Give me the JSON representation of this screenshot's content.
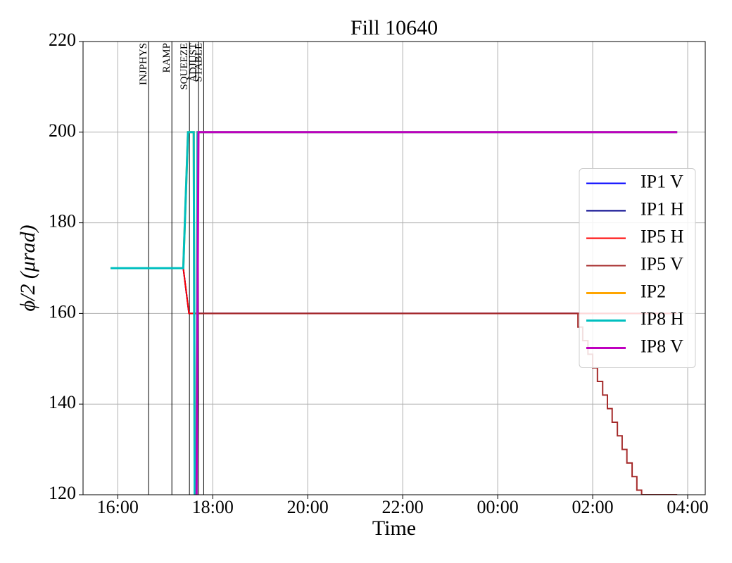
{
  "chart_data": {
    "type": "line",
    "title": "Fill 10640",
    "x_label": "Time",
    "y_label": "ϕ/2 (μrad)",
    "xlim": [
      15.27,
      28.37
    ],
    "ylim": [
      120,
      220
    ],
    "xticks": [
      {
        "value": 16,
        "label": "16:00"
      },
      {
        "value": 18,
        "label": "18:00"
      },
      {
        "value": 20,
        "label": "20:00"
      },
      {
        "value": 22,
        "label": "22:00"
      },
      {
        "value": 24,
        "label": "00:00"
      },
      {
        "value": 26,
        "label": "02:00"
      },
      {
        "value": 28,
        "label": "04:00"
      }
    ],
    "yticks": [
      120,
      140,
      160,
      180,
      200,
      220
    ],
    "grid": true,
    "legend_loc": "center right",
    "vlines": [
      {
        "x": 16.65,
        "label": "INJPHYS"
      },
      {
        "x": 17.14,
        "label": "RAMP"
      },
      {
        "x": 17.51,
        "label": "SQUEEZE"
      },
      {
        "x": 17.7,
        "label": "ADJUST"
      },
      {
        "x": 17.81,
        "label": "STABLE"
      }
    ],
    "series": [
      {
        "name": "IP1 V",
        "color": "#0000ff",
        "linewidth": 2,
        "x": [
          15.85,
          17.38,
          17.5,
          27.78
        ],
        "values": [
          170,
          170,
          160,
          160
        ]
      },
      {
        "name": "IP1 H",
        "color": "#00008b",
        "linewidth": 2,
        "x": [
          15.85,
          17.38,
          17.5,
          27.78
        ],
        "values": [
          170,
          170,
          160,
          160
        ]
      },
      {
        "name": "IP5 H",
        "color": "#ff0000",
        "linewidth": 2,
        "x": [
          15.85,
          17.38,
          17.5,
          27.78
        ],
        "values": [
          170,
          170,
          160,
          160
        ]
      },
      {
        "name": "IP5 V",
        "color": "#a52a2a",
        "linewidth": 2,
        "x": [
          17.64,
          17.68,
          25.69,
          25.69,
          25.79,
          25.79,
          25.9,
          25.9,
          26.0,
          26.0,
          26.1,
          26.1,
          26.21,
          26.21,
          26.31,
          26.31,
          26.41,
          26.41,
          26.52,
          26.52,
          26.62,
          26.62,
          26.72,
          26.72,
          26.83,
          26.83,
          26.93,
          26.93,
          27.03,
          27.03,
          27.78
        ],
        "values": [
          120,
          160,
          160,
          157,
          157,
          154,
          154,
          151,
          151,
          148,
          148,
          145,
          145,
          142,
          142,
          139,
          139,
          136,
          136,
          133,
          133,
          130,
          130,
          127,
          127,
          124,
          124,
          121,
          121,
          120,
          120
        ]
      },
      {
        "name": "IP2",
        "color": "#ffa500",
        "linewidth": 3,
        "x": [
          15.85,
          17.38,
          17.48,
          17.6,
          17.62,
          17.66,
          17.68,
          27.78
        ],
        "values": [
          170,
          170,
          200,
          200,
          120,
          120,
          200,
          200
        ]
      },
      {
        "name": "IP8 H",
        "color": "#00bfbf",
        "linewidth": 3,
        "x": [
          15.85,
          17.38,
          17.48,
          17.6,
          17.62,
          17.66,
          17.68,
          27.78
        ],
        "values": [
          170,
          170,
          200,
          200,
          120,
          120,
          200,
          200
        ]
      },
      {
        "name": "IP8 V",
        "color": "#bf00bf",
        "linewidth": 3,
        "x": [
          17.66,
          17.7,
          27.78
        ],
        "values": [
          120,
          200,
          200
        ]
      }
    ]
  }
}
